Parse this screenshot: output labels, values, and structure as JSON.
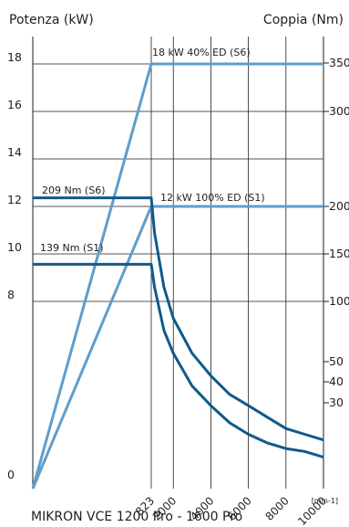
{
  "chart_data": {
    "type": "line",
    "title": "MIKRON VCE 1200 Pro - 1600 Pro",
    "left_axis": {
      "label": "Potenza (kW)",
      "ticks": [
        0,
        8,
        10,
        12,
        14,
        16,
        18
      ],
      "range": [
        0,
        19
      ]
    },
    "right_axis": {
      "label": "Coppia (Nm)",
      "ticks": [
        30,
        40,
        50,
        100,
        150,
        200,
        300,
        350
      ],
      "tick_labels": [
        "30",
        "40",
        "50",
        "100",
        "150",
        "200",
        "300",
        "350"
      ]
    },
    "x_axis": {
      "ticks": [
        823,
        2000,
        4000,
        6000,
        8000,
        10000
      ],
      "tick_labels": [
        "823",
        "2000",
        "4000",
        "6000",
        "8000",
        "10000"
      ],
      "unit": "[min-1]",
      "range": [
        0,
        10000
      ],
      "scale": "piecewise-linear: 0-823 and 823-10000"
    },
    "grid": true,
    "annotations": {
      "power_s6": "18 kW 40% ED (S6)",
      "power_s1": "12 kW   100%   ED (S1)",
      "torque_s6": "209 Nm (S6)",
      "torque_s1": "139 Nm (S1)"
    },
    "series": [
      {
        "name": "18 kW 40% ED (S6)",
        "axis": "left",
        "color": "#5f9dcc",
        "x": [
          0,
          823,
          10000
        ],
        "y": [
          0,
          18,
          18
        ]
      },
      {
        "name": "12 kW   100%   ED (S1)",
        "axis": "left",
        "color": "#5f9dcc",
        "x": [
          0,
          823,
          10000
        ],
        "y": [
          0,
          12,
          12
        ]
      },
      {
        "name": "209 Nm (S6)",
        "axis": "right",
        "color": "#0e5a8c",
        "x": [
          0,
          823,
          1000,
          1500,
          2000,
          3000,
          4000,
          5000,
          6000,
          7000,
          8000,
          9000,
          10000
        ],
        "y": [
          209,
          209,
          172,
          115,
          86,
          57,
          43,
          34,
          29,
          25,
          21,
          19,
          17
        ]
      },
      {
        "name": "139 Nm (S1)",
        "axis": "right",
        "color": "#0e5a8c",
        "x": [
          0,
          823,
          1000,
          1500,
          2000,
          3000,
          4000,
          5000,
          6000,
          7000,
          8000,
          9000,
          10000
        ],
        "y": [
          139,
          139,
          115,
          76,
          57,
          38,
          29,
          23,
          19,
          16,
          14,
          13,
          11
        ]
      }
    ]
  }
}
